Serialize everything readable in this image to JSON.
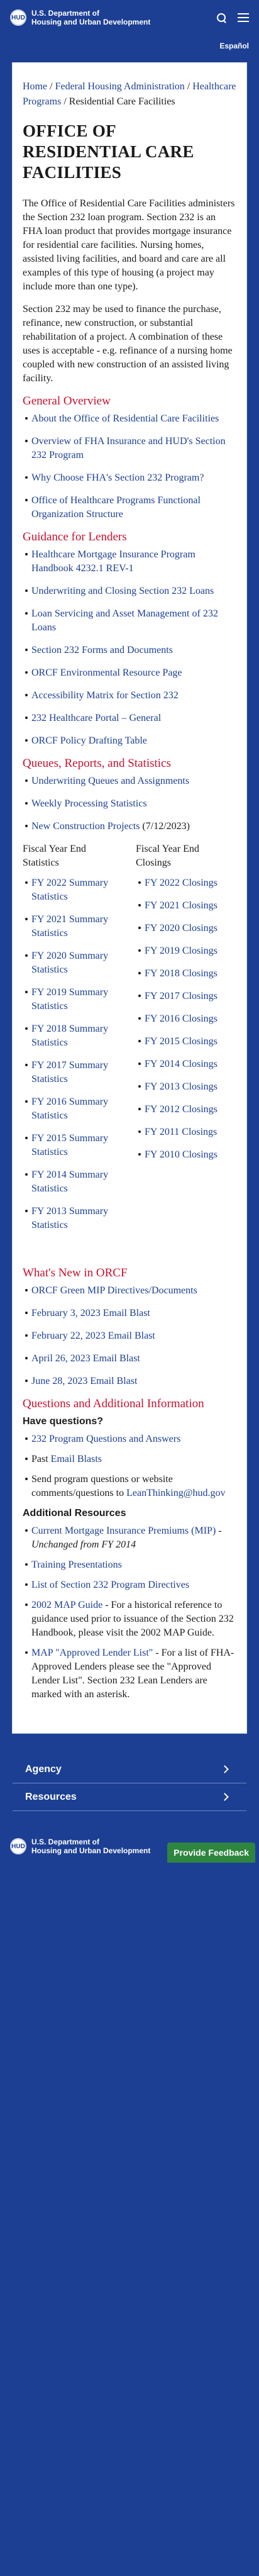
{
  "header": {
    "seal_label": "HUD",
    "agency_line1": "U.S. Department of",
    "agency_line2": "Housing and Urban Development",
    "language": "Español"
  },
  "breadcrumb": {
    "home": "Home",
    "federal_housing": "Federal Housing Administration",
    "healthcare_programs": "Healthcare Programs",
    "current": "Residential Care Facilities",
    "sep": " / "
  },
  "page": {
    "title": "OFFICE OF RESIDENTIAL CARE FACILITIES",
    "intro1": "The Office of Residential Care Facilities administers the Section 232 loan program. Section 232 is an FHA loan product that provides mortgage insurance for residential care facilities. Nursing homes, assisted living facilities, and board and care are all examples of this type of housing (a project may include more than one type).",
    "intro2": "Section 232 may be used to finance the purchase, refinance, new construction, or substantial rehabilitation of a project. A combination of these uses is acceptable - e.g. refinance of a nursing home coupled with new construction of an assisted living facility."
  },
  "general_overview": {
    "heading": "General Overview",
    "links": [
      "About the Office of Residential Care Facilities",
      "Overview of FHA Insurance and HUD's Section 232 Program",
      "Why Choose FHA's Section 232 Program?",
      "Office of Healthcare Programs Functional Organization Structure"
    ]
  },
  "guidance": {
    "heading": "Guidance for Lenders",
    "links": [
      "Healthcare Mortgage Insurance Program Handbook 4232.1 REV-1",
      "Underwriting and Closing Section 232 Loans",
      "Loan Servicing and Asset Management of 232 Loans",
      "Section 232 Forms and Documents",
      "ORCF Environmental Resource Page",
      "Accessibility Matrix for Section 232",
      "232 Healthcare Portal – General",
      "ORCF Policy Drafting Table"
    ]
  },
  "queues": {
    "heading": "Queues, Reports, and Statistics",
    "links": [
      "Underwriting Queues and Assignments",
      "Weekly Processing Statistics"
    ],
    "new_construction_link": "New Construction Projects",
    "new_construction_date": " (7/12/2023)",
    "col1_head": "Fiscal Year End Statistics",
    "col1": [
      "FY 2022 Summary Statistics",
      "FY 2021 Summary Statistics",
      "FY 2020 Summary Statistics",
      "FY 2019 Summary Statistics",
      "FY 2018 Summary Statistics",
      "FY 2017 Summary Statistics",
      "FY 2016 Summary Statistics",
      "FY 2015 Summary Statistics",
      "FY 2014 Summary Statistics",
      "FY 2013 Summary Statistics"
    ],
    "col2_head": "Fiscal Year End Closings",
    "col2": [
      "FY 2022 Closings",
      "FY 2021 Closings",
      "FY 2020 Closings",
      "FY 2019 Closings",
      "FY 2018 Closings",
      "FY 2017 Closings",
      "FY 2016 Closings",
      "FY 2015 Closings",
      "FY 2014 Closings",
      "FY 2013 Closings",
      "FY 2012 Closings",
      "FY 2011 Closings",
      "FY 2010 Closings"
    ]
  },
  "whats_new": {
    "heading": "What's New in ORCF",
    "links": [
      "ORCF Green MIP Directives/Documents",
      "February 3, 2023 Email Blast",
      "February 22, 2023 Email Blast",
      "April 26, 2023 Email Blast",
      "June 28, 2023 Email Blast"
    ]
  },
  "questions": {
    "heading": "Questions and Additional Information",
    "have_questions": "Have questions?",
    "qa_link": "232 Program Questions and Answers",
    "past_label": "Past ",
    "past_link": "Email Blasts",
    "send_text": "Send program questions or website comments/questions to ",
    "email": "LeanThinking@hud.gov",
    "additional": "Additional Resources",
    "mip_link": "Current Mortgage Insurance Premiums (MIP)",
    "mip_note": " - Unchanged from FY 2014",
    "training_link": "Training Presentations",
    "list_link": "List of Section 232 Program Directives",
    "map_link": "2002 MAP Guide",
    "map_text": " - For a historical reference to guidance used prior to issuance of the Section 232 Handbook, please visit the 2002 MAP Guide.",
    "approved_link": "MAP \"Approved Lender List\"",
    "approved_text": " - For a list of FHA-Approved Lenders please see the \"Approved Lender List\". Section 232 Lean Lenders are marked with an asterisk."
  },
  "footer": {
    "agency_label": "Agency",
    "resources_label": "Resources",
    "feedback": "Provide Feedback"
  }
}
